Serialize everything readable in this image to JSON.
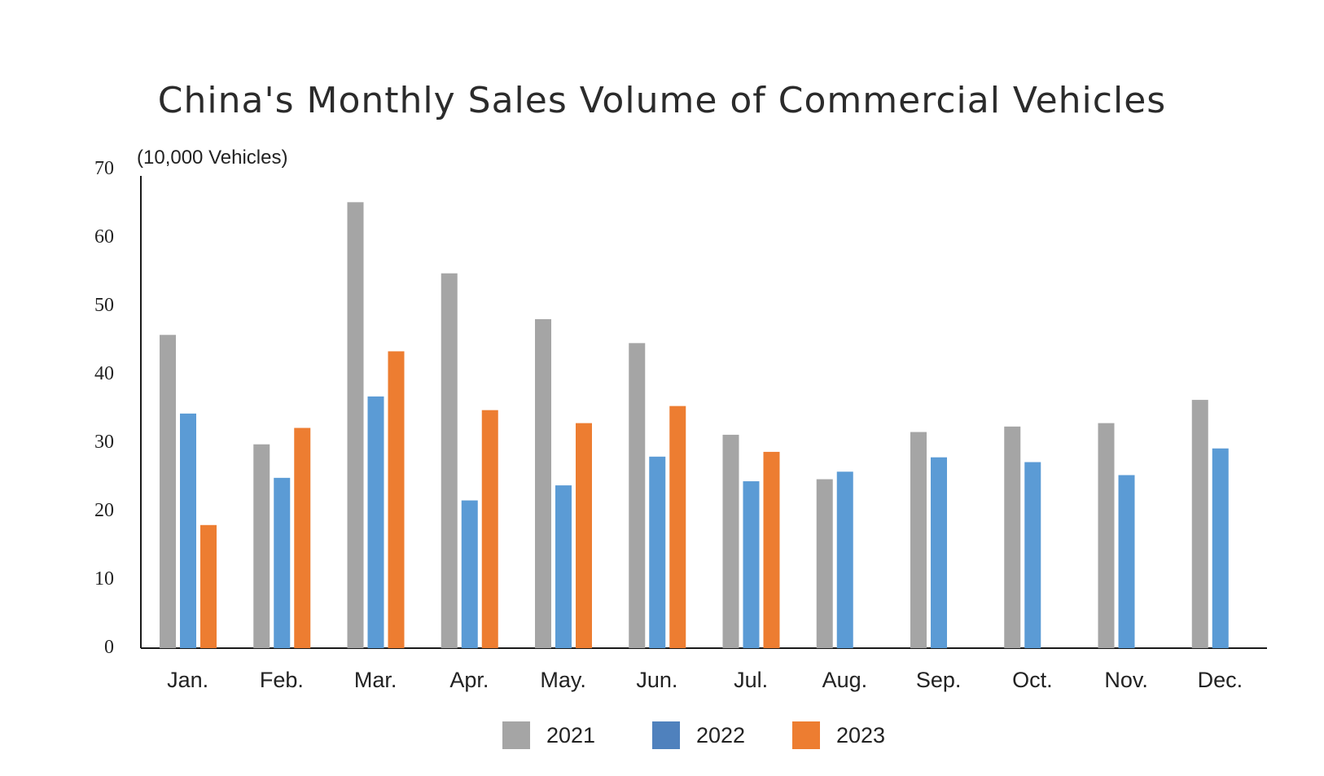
{
  "chart_data": {
    "type": "bar",
    "title": "China's Monthly Sales Volume of Commercial Vehicles",
    "ylabel": "(10,000 Vehicles)",
    "xlabel": "",
    "ylim": [
      0,
      70
    ],
    "yticks": [
      0,
      10,
      20,
      30,
      40,
      50,
      60,
      70
    ],
    "grid": false,
    "legend_position": "bottom",
    "categories": [
      "Jan.",
      "Feb.",
      "Mar.",
      "Apr.",
      "May.",
      "Jun.",
      "Jul.",
      "Aug.",
      "Sep.",
      "Oct.",
      "Nov.",
      "Dec."
    ],
    "series": [
      {
        "name": "2021",
        "color": "#A5A5A5",
        "values": [
          45.8,
          29.8,
          65.2,
          54.8,
          48.1,
          44.6,
          31.2,
          24.7,
          31.6,
          32.4,
          32.9,
          36.3
        ]
      },
      {
        "name": "2022",
        "color": "#5B9BD5",
        "values": [
          34.3,
          24.9,
          36.8,
          21.6,
          23.8,
          28.0,
          24.4,
          25.8,
          27.9,
          27.2,
          25.3,
          29.2
        ]
      },
      {
        "name": "2023",
        "color": "#ED7D31",
        "values": [
          18.0,
          32.2,
          43.4,
          34.8,
          32.9,
          35.4,
          28.7,
          null,
          null,
          null,
          null,
          null
        ]
      }
    ],
    "legend_swatch_colors": [
      "#A5A5A5",
      "#4F81BD",
      "#ED7D31"
    ]
  }
}
